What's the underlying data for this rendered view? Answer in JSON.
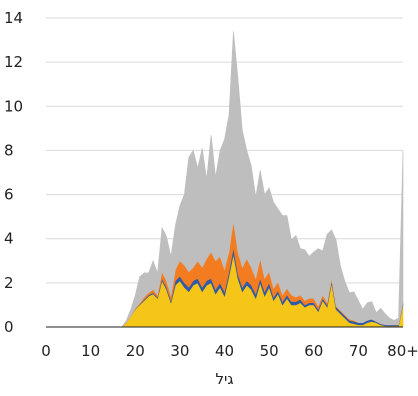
{
  "chart_data": {
    "type": "area",
    "stacked": true,
    "xlabel": "גיל",
    "ylabel": "",
    "title": "",
    "xlim": [
      0,
      80
    ],
    "ylim": [
      0,
      14
    ],
    "xticks": [
      0,
      10,
      20,
      30,
      40,
      50,
      60,
      70,
      80
    ],
    "xtick_labels": [
      "0",
      "10",
      "20",
      "30",
      "40",
      "50",
      "60",
      "70",
      "80+"
    ],
    "yticks": [
      0,
      2,
      4,
      6,
      8,
      10,
      12,
      14
    ],
    "ytick_labels": [
      "0",
      "2",
      "4",
      "6",
      "8",
      "10",
      "12",
      "14"
    ],
    "grid": "horizontal",
    "legend": "none",
    "x": [
      0,
      1,
      2,
      3,
      4,
      5,
      6,
      7,
      8,
      9,
      10,
      11,
      12,
      13,
      14,
      15,
      16,
      17,
      18,
      19,
      20,
      21,
      22,
      23,
      24,
      25,
      26,
      27,
      28,
      29,
      30,
      31,
      32,
      33,
      34,
      35,
      36,
      37,
      38,
      39,
      40,
      41,
      42,
      43,
      44,
      45,
      46,
      47,
      48,
      49,
      50,
      51,
      52,
      53,
      54,
      55,
      56,
      57,
      58,
      59,
      60,
      61,
      62,
      63,
      64,
      65,
      66,
      67,
      68,
      69,
      70,
      71,
      72,
      73,
      74,
      75,
      76,
      77,
      78,
      79,
      80
    ],
    "series": [
      {
        "color": "#F5C518",
        "values": [
          0,
          0,
          0,
          0,
          0,
          0,
          0,
          0,
          0,
          0,
          0,
          0,
          0,
          0,
          0,
          0,
          0,
          0,
          0.2,
          0.5,
          0.8,
          1.0,
          1.2,
          1.4,
          1.5,
          1.3,
          2.1,
          1.7,
          1.1,
          1.9,
          2.1,
          1.8,
          1.6,
          1.9,
          2.0,
          1.6,
          1.9,
          2.0,
          1.5,
          1.8,
          1.4,
          2.3,
          3.3,
          2.2,
          1.6,
          1.9,
          1.7,
          1.3,
          2.0,
          1.4,
          1.8,
          1.2,
          1.5,
          1.0,
          1.3,
          1.0,
          1.0,
          1.1,
          0.9,
          1.0,
          1.0,
          0.7,
          1.2,
          0.9,
          2.0,
          0.8,
          0.6,
          0.4,
          0.2,
          0.15,
          0.1,
          0.1,
          0.2,
          0.25,
          0.2,
          0.1,
          0.05,
          0.05,
          0.05,
          0.05,
          1.0
        ]
      },
      {
        "color": "#2E5AA8",
        "values": [
          0,
          0,
          0,
          0,
          0,
          0,
          0,
          0,
          0,
          0,
          0,
          0,
          0,
          0,
          0,
          0,
          0,
          0,
          0,
          0,
          0.02,
          0.03,
          0.05,
          0.05,
          0.05,
          0.05,
          0.1,
          0.1,
          0.1,
          0.2,
          0.2,
          0.2,
          0.2,
          0.2,
          0.2,
          0.2,
          0.2,
          0.2,
          0.2,
          0.2,
          0.2,
          0.2,
          0.3,
          0.2,
          0.2,
          0.2,
          0.2,
          0.2,
          0.2,
          0.2,
          0.2,
          0.15,
          0.15,
          0.15,
          0.15,
          0.15,
          0.15,
          0.15,
          0.1,
          0.1,
          0.1,
          0.1,
          0.1,
          0.1,
          0.1,
          0.1,
          0.1,
          0.1,
          0.1,
          0.1,
          0.1,
          0.1,
          0.1,
          0.1,
          0.05,
          0.05,
          0.05,
          0.05,
          0.05,
          0.05,
          0.1
        ]
      },
      {
        "color": "#F47C20",
        "values": [
          0,
          0,
          0,
          0,
          0,
          0,
          0,
          0,
          0,
          0,
          0,
          0,
          0,
          0,
          0,
          0,
          0,
          0,
          0,
          0,
          0.02,
          0.05,
          0.1,
          0.1,
          0.15,
          0.1,
          0.3,
          0.3,
          0.2,
          0.5,
          0.7,
          0.8,
          0.7,
          0.6,
          0.8,
          0.9,
          1.0,
          1.2,
          1.3,
          1.2,
          1.0,
          0.9,
          1.2,
          1.0,
          0.9,
          1.0,
          0.8,
          0.7,
          0.9,
          0.6,
          0.5,
          0.4,
          0.4,
          0.3,
          0.3,
          0.3,
          0.2,
          0.2,
          0.2,
          0.2,
          0.2,
          0.15,
          0.15,
          0.1,
          0.1,
          0.05,
          0.05,
          0.05,
          0.05,
          0.05,
          0,
          0,
          0,
          0,
          0,
          0,
          0,
          0,
          0,
          0,
          0
        ]
      },
      {
        "color": "#BEBEBE",
        "values": [
          0,
          0,
          0,
          0,
          0,
          0,
          0,
          0,
          0,
          0,
          0,
          0,
          0,
          0,
          0,
          0,
          0,
          0,
          0.1,
          0.3,
          0.6,
          1.2,
          1.1,
          0.9,
          1.3,
          1.0,
          2.0,
          2.0,
          1.8,
          2.0,
          2.5,
          3.2,
          5.2,
          5.3,
          4.2,
          5.4,
          3.6,
          5.3,
          3.8,
          4.8,
          5.9,
          6.2,
          8.6,
          7.9,
          6.2,
          4.9,
          4.6,
          3.7,
          4.0,
          3.8,
          3.8,
          3.9,
          3.3,
          3.6,
          3.3,
          2.5,
          2.8,
          2.1,
          2.3,
          1.9,
          2.1,
          2.6,
          2.0,
          3.1,
          2.2,
          3.0,
          2.0,
          1.5,
          1.2,
          1.3,
          1.0,
          0.6,
          0.8,
          0.8,
          0.4,
          0.7,
          0.5,
          0.3,
          0.2,
          0.3,
          6.9
        ]
      }
    ]
  }
}
